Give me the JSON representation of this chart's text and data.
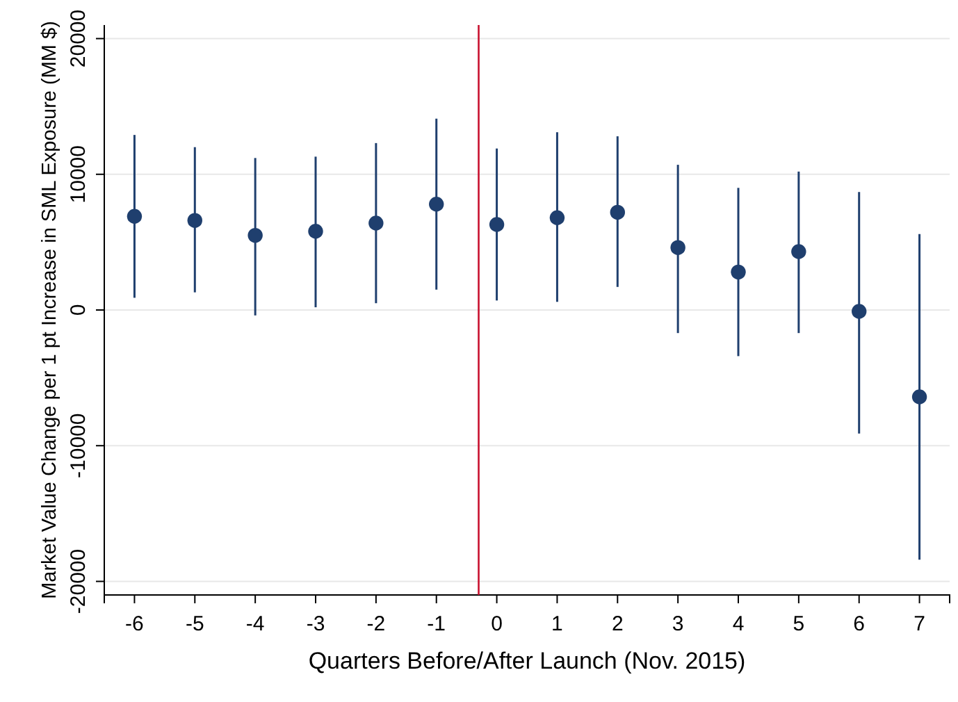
{
  "chart_data": {
    "type": "scatter",
    "xlabel": "Quarters Before/After Launch (Nov. 2015)",
    "ylabel": "Market Value Change per 1 pt Increase in SML Exposure (MM $)",
    "x": [
      -6,
      -5,
      -4,
      -3,
      -2,
      -1,
      0,
      1,
      2,
      3,
      4,
      5,
      6,
      7
    ],
    "series": [
      {
        "color": "#1f3f6e",
        "values": [
          6900,
          6600,
          5500,
          5800,
          6400,
          7800,
          6300,
          6800,
          7200,
          4600,
          2800,
          4300,
          -100,
          -6400
        ],
        "errors": [
          [
            900,
            12900
          ],
          [
            1300,
            12000
          ],
          [
            -400,
            11200
          ],
          [
            200,
            11300
          ],
          [
            500,
            12300
          ],
          [
            1500,
            14100
          ],
          [
            700,
            11900
          ],
          [
            600,
            13100
          ],
          [
            1700,
            12800
          ],
          [
            -1700,
            10700
          ],
          [
            -3400,
            9000
          ],
          [
            -1700,
            10200
          ],
          [
            -9100,
            8700
          ],
          [
            -18400,
            5600
          ]
        ]
      }
    ],
    "xlim": [
      -6.5,
      7.5
    ],
    "xticks": [
      -6,
      -5,
      -4,
      -3,
      -2,
      -1,
      0,
      1,
      2,
      3,
      4,
      5,
      6,
      7
    ],
    "ylim": [
      -21000,
      21000
    ],
    "yticks": [
      -20000,
      -10000,
      0,
      10000,
      20000
    ],
    "grid": "y",
    "marker": "circle",
    "ref_lines": [
      {
        "axis": "x",
        "value": -0.3,
        "color": "#c8102e"
      }
    ]
  }
}
